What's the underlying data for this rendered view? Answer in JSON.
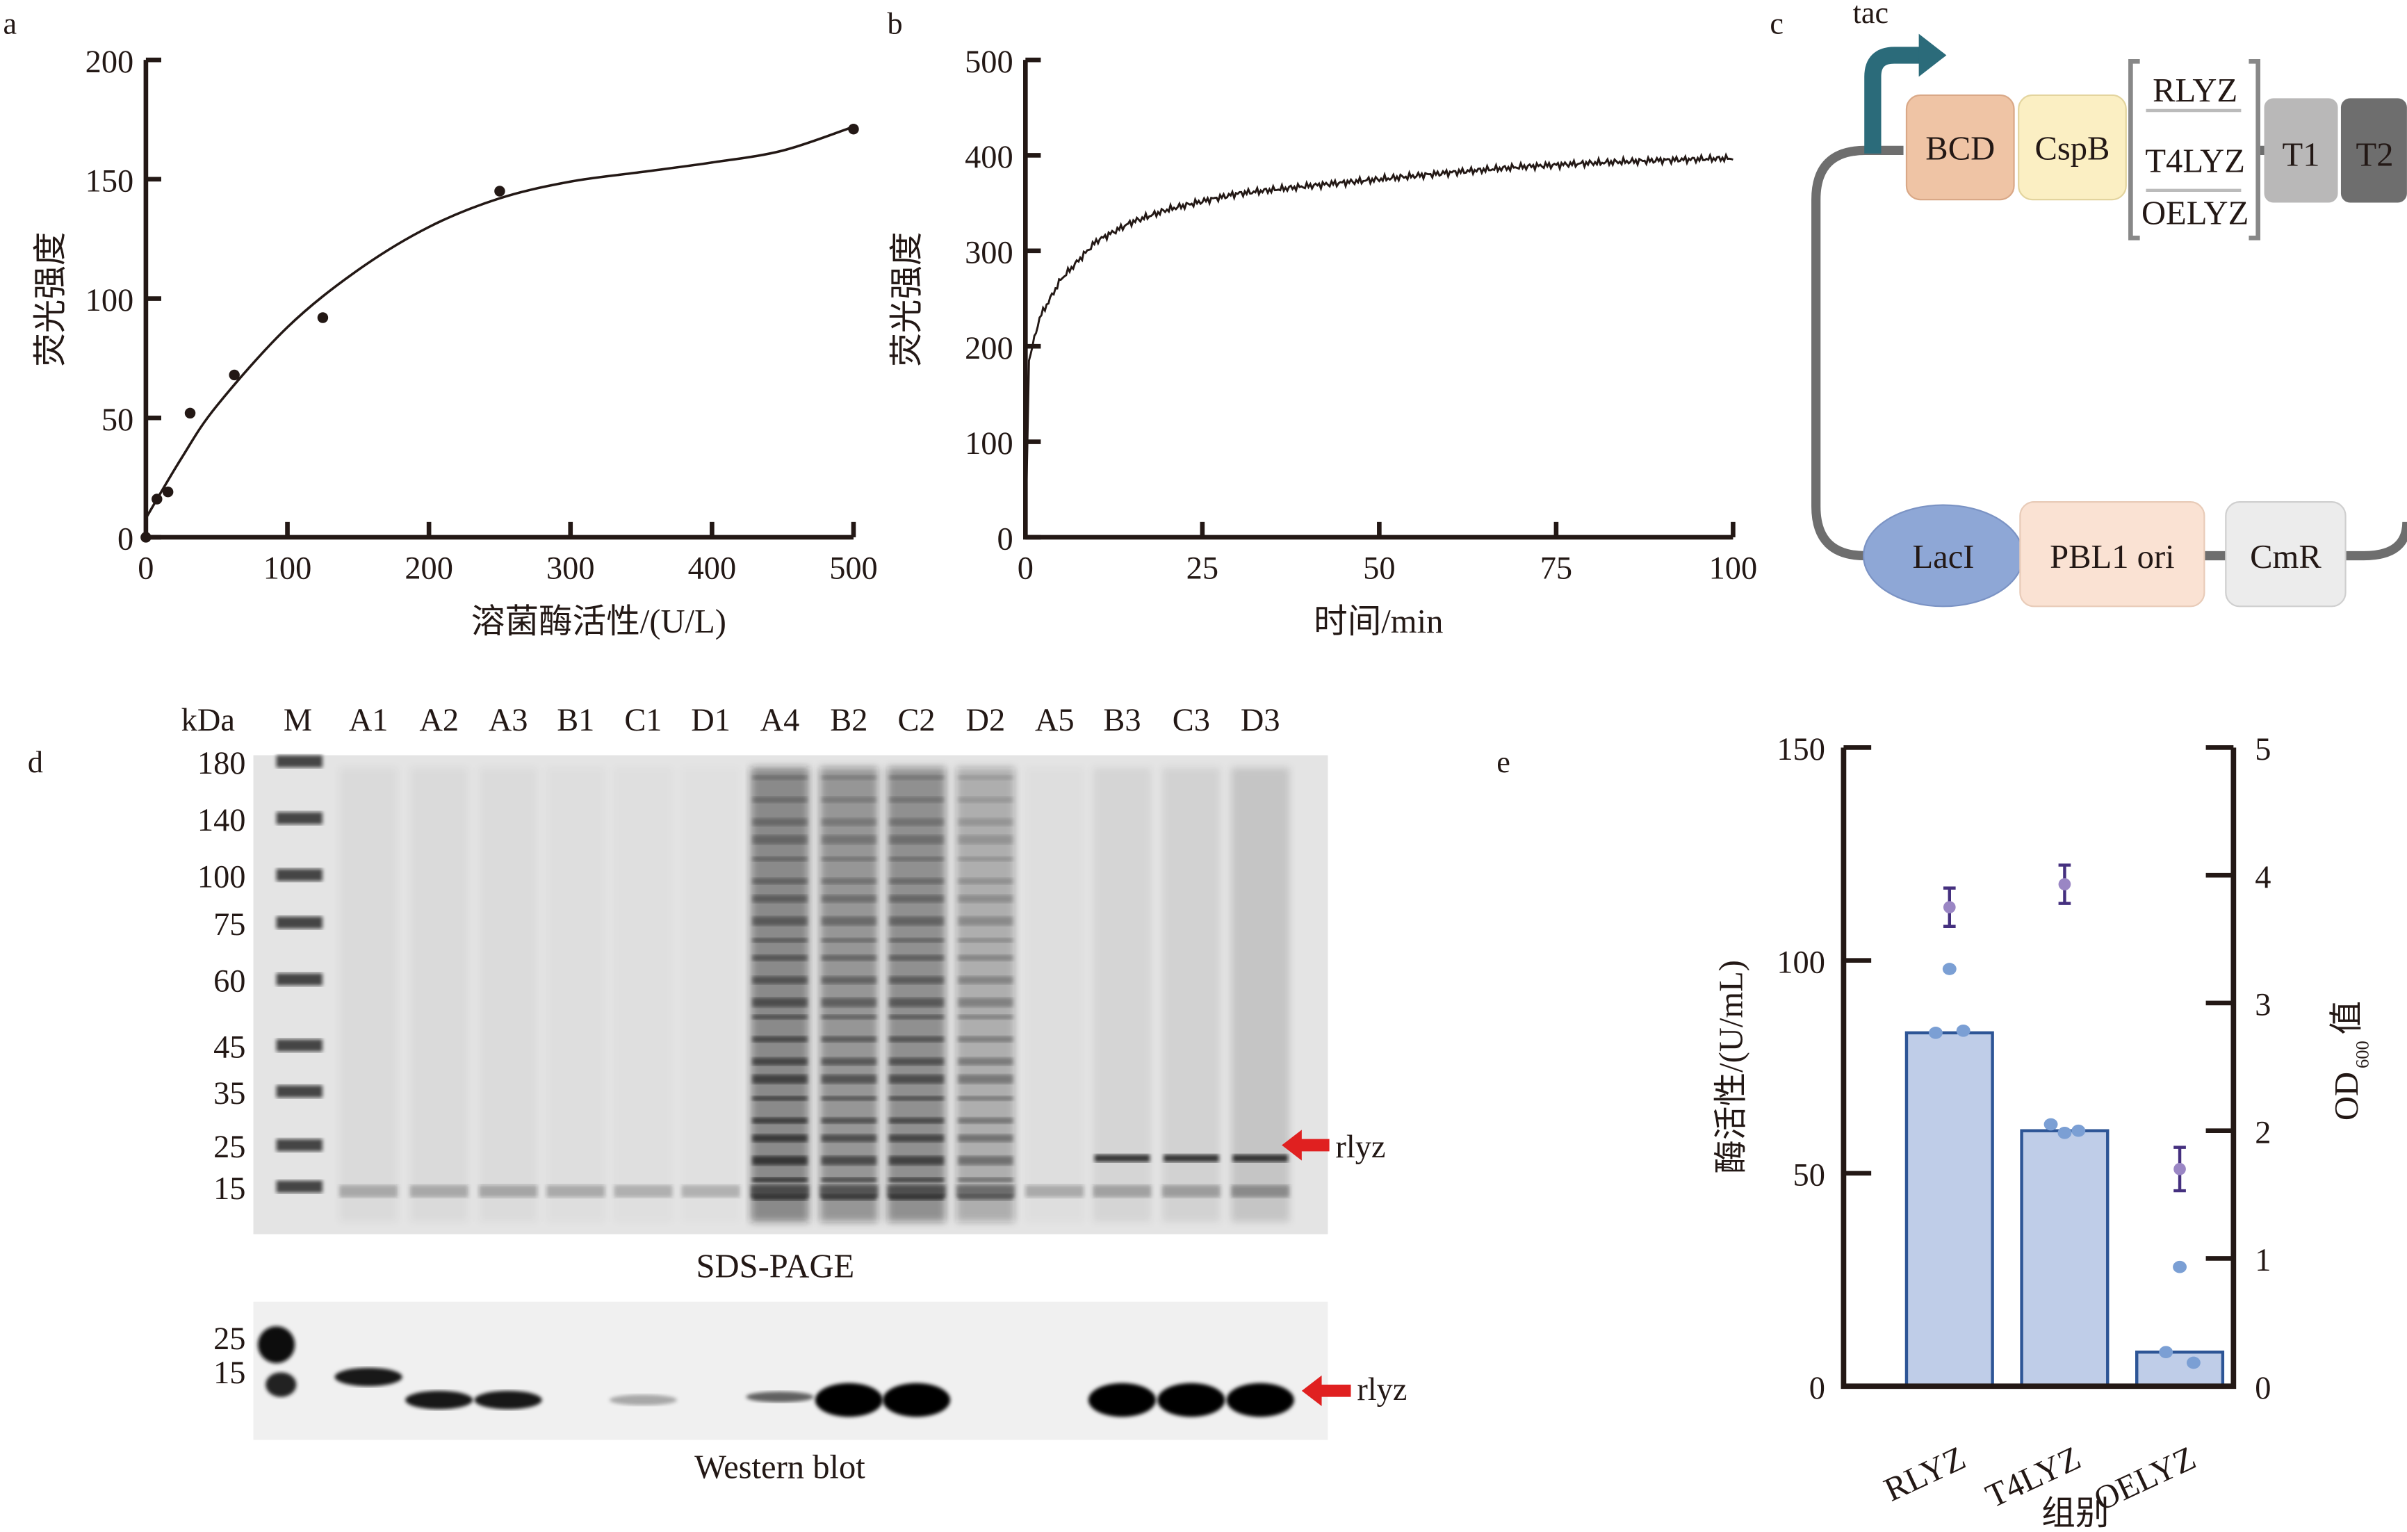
{
  "panels": {
    "a": "a",
    "b": "b",
    "c": "c",
    "d": "d",
    "e": "e"
  },
  "chart_data": [
    {
      "id": "a",
      "type": "scatter",
      "xlabel": "溶菌酶活性/(U/L)",
      "ylabel": "荧光强度",
      "xlim": [
        0,
        500
      ],
      "ylim": [
        0,
        200
      ],
      "xticks": [
        "0",
        "100",
        "200",
        "300",
        "400",
        "500"
      ],
      "yticks": [
        "0",
        "50",
        "100",
        "150",
        "200"
      ],
      "points": {
        "x": [
          0,
          7.8,
          15.6,
          31.25,
          62.5,
          125,
          250,
          500
        ],
        "y": [
          0,
          16,
          19,
          52,
          68,
          92,
          145,
          171
        ]
      },
      "fit_curve": {
        "x": [
          0,
          25,
          50,
          100,
          150,
          200,
          250,
          300,
          350,
          400,
          450,
          500
        ],
        "y": [
          8,
          33,
          55,
          88,
          112,
          130,
          142,
          149,
          153,
          157,
          162,
          172
        ]
      }
    },
    {
      "id": "b",
      "type": "line",
      "xlabel": "时间/min",
      "ylabel": "荧光强度",
      "xlim": [
        0,
        100
      ],
      "ylim": [
        0,
        500
      ],
      "xticks": [
        "0",
        "25",
        "50",
        "75",
        "100"
      ],
      "yticks": [
        "0",
        "100",
        "200",
        "300",
        "400",
        "500"
      ],
      "x": [
        0,
        0.5,
        1,
        2,
        5,
        10,
        15,
        20,
        25,
        30,
        40,
        50,
        60,
        70,
        80,
        90,
        100
      ],
      "y": [
        0,
        185,
        200,
        230,
        270,
        310,
        330,
        343,
        352,
        360,
        368,
        375,
        382,
        388,
        392,
        395,
        397
      ]
    },
    {
      "id": "e",
      "type": "bar",
      "xlabel": "组别",
      "ylabel": "酶活性/(U/mL)",
      "y2label_main": "OD",
      "y2label_sub": "600",
      "y2label_suffix": "值",
      "categories": [
        "RLYZ",
        "T4LYZ",
        "OELYZ"
      ],
      "ylim": [
        0,
        150
      ],
      "y2lim": [
        0,
        5
      ],
      "yticks": [
        "0",
        "50",
        "100",
        "150"
      ],
      "y2ticks": [
        "0",
        "1",
        "2",
        "3",
        "4",
        "5"
      ],
      "series": [
        {
          "name": "酶活性",
          "axis": "left",
          "values": [
            83,
            60,
            8
          ],
          "replicates": [
            [
              98,
              83,
              83.5
            ],
            [
              59.5,
              61.5,
              60
            ],
            [
              28,
              8,
              5.5
            ]
          ]
        },
        {
          "name": "OD600",
          "axis": "right",
          "values": [
            3.75,
            3.93,
            1.7
          ],
          "errors": [
            0.15,
            0.15,
            0.17
          ]
        }
      ],
      "colors": {
        "bar_fill": "#bfcde8",
        "bar_stroke": "#2d5596",
        "points": "#7b9fd4",
        "od": "#9a86c4",
        "od_err": "#45307f"
      }
    }
  ],
  "diagram_c": {
    "promoter": "tac",
    "parts": [
      "BCD",
      "CspB",
      "RLYZ",
      "T4LYZ",
      "OELYZ",
      "T1",
      "T2"
    ],
    "backbone": [
      "LacI",
      "PBL1 ori",
      "CmR"
    ]
  },
  "gel_d": {
    "kda_label": "kDa",
    "lanes": [
      "M",
      "A1",
      "A2",
      "A3",
      "B1",
      "C1",
      "D1",
      "A4",
      "B2",
      "C2",
      "D2",
      "A5",
      "B3",
      "C3",
      "D3"
    ],
    "markers": [
      "180",
      "140",
      "100",
      "75",
      "60",
      "45",
      "35",
      "25",
      "15"
    ],
    "wb_markers": [
      "25",
      "15"
    ],
    "arrow_label": "rlyz",
    "sds_caption": "SDS-PAGE",
    "wb_caption": "Western blot"
  }
}
